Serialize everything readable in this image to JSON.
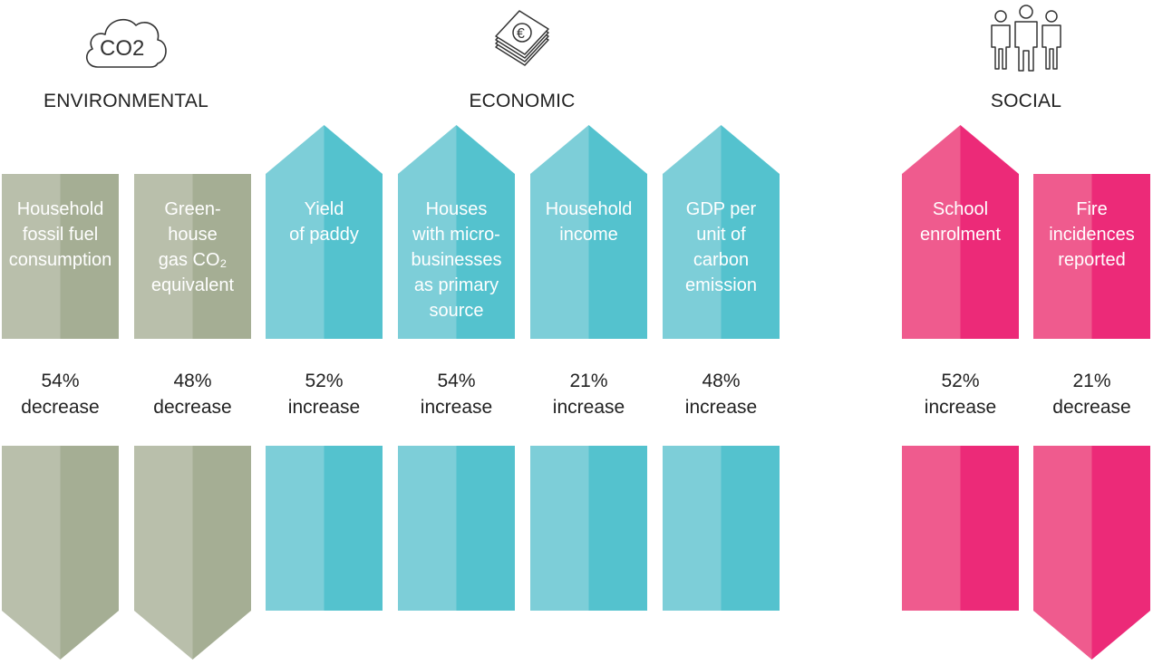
{
  "categories": [
    {
      "key": "environmental",
      "label": "ENVIRONMENTAL",
      "icon": "co2-cloud-icon",
      "icon_text": "CO2"
    },
    {
      "key": "economic",
      "label": "ECONOMIC",
      "icon": "euro-banknotes-icon"
    },
    {
      "key": "social",
      "label": "SOCIAL",
      "icon": "people-icon"
    }
  ],
  "colors": {
    "environmental": {
      "light": "#b9bfab",
      "dark": "#a5ae94"
    },
    "economic": {
      "light": "#7dced8",
      "dark": "#54c2ce"
    },
    "social": {
      "light": "#ef5b8e",
      "dark": "#ec2a78"
    }
  },
  "indicators": [
    {
      "category": "environmental",
      "name": "Household\nfossil fuel\nconsumption",
      "value": "54%",
      "direction": "decrease"
    },
    {
      "category": "environmental",
      "name": "Green-\nhouse\ngas CO₂\nequivalent",
      "value": "48%",
      "direction": "decrease"
    },
    {
      "category": "economic",
      "name": "Yield\nof paddy",
      "value": "52%",
      "direction": "increase"
    },
    {
      "category": "economic",
      "name": "Houses\nwith micro-\nbusinesses\nas primary\nsource",
      "value": "54%",
      "direction": "increase"
    },
    {
      "category": "economic",
      "name": "Household\nincome",
      "value": "21%",
      "direction": "increase"
    },
    {
      "category": "economic",
      "name": "GDP per\nunit of\ncarbon\nemission",
      "value": "48%",
      "direction": "increase"
    },
    {
      "category": "social",
      "name": "School\nenrolment",
      "value": "52%",
      "direction": "increase"
    },
    {
      "category": "social",
      "name": "Fire\nincidences\nreported",
      "value": "21%",
      "direction": "decrease"
    }
  ]
}
